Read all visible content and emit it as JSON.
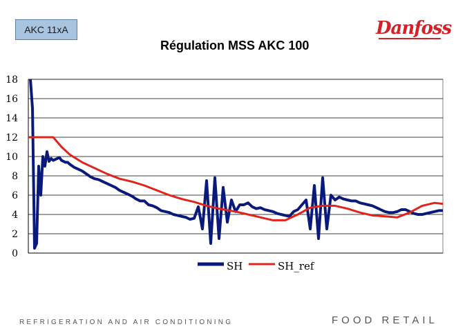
{
  "badge": {
    "label": "AKC 11xA"
  },
  "logo": {
    "text": "Danfoss",
    "color": "#d42027"
  },
  "chart_data": {
    "type": "line",
    "title": "Régulation MSS AKC 100",
    "xlabel": "",
    "ylabel": "",
    "ylim": [
      0,
      18
    ],
    "yticks": [
      0,
      2,
      4,
      6,
      8,
      10,
      12,
      14,
      16,
      18
    ],
    "ytick_labels": [
      "0",
      "2",
      "4",
      "6",
      "8",
      "10",
      "12",
      "14",
      "16",
      "18"
    ],
    "grid": true,
    "legend_position": "bottom-center",
    "xlim": [
      0,
      100
    ],
    "series": [
      {
        "name": "SH",
        "color": "#0a1a7a",
        "x": [
          0.5,
          1,
          1.5,
          2,
          2.5,
          3,
          3.5,
          4,
          4.5,
          5,
          5.5,
          6,
          6.5,
          7,
          7.5,
          8,
          8.5,
          9,
          9.5,
          10,
          11,
          12,
          13,
          14,
          15,
          16,
          17,
          18,
          19,
          20,
          21,
          22,
          23,
          24,
          25,
          26,
          27,
          28,
          29,
          30,
          31,
          32,
          33,
          34,
          35,
          36,
          37,
          38,
          39,
          40,
          41,
          42,
          43,
          44,
          45,
          46,
          47,
          48,
          49,
          50,
          51,
          52,
          53,
          54,
          55,
          56,
          57,
          58,
          59,
          60,
          61,
          62,
          63,
          64,
          65,
          66,
          67,
          68,
          69,
          70,
          71,
          72,
          73,
          74,
          75,
          76,
          77,
          78,
          79,
          80,
          81,
          82,
          83,
          84,
          85,
          86,
          87,
          88,
          89,
          90,
          91,
          92,
          93,
          94,
          95,
          96,
          97,
          98,
          99,
          100
        ],
        "values": [
          18,
          15,
          0.5,
          1,
          9,
          6,
          10,
          9,
          10.5,
          9.5,
          9.8,
          9.6,
          9.7,
          9.8,
          9.9,
          9.6,
          9.5,
          9.4,
          9.4,
          9.2,
          8.9,
          8.7,
          8.5,
          8.2,
          7.9,
          7.7,
          7.6,
          7.4,
          7.2,
          7.0,
          6.8,
          6.5,
          6.3,
          6.1,
          5.9,
          5.6,
          5.4,
          5.4,
          5.0,
          4.9,
          4.7,
          4.4,
          4.3,
          4.2,
          4.0,
          3.9,
          3.8,
          3.7,
          3.5,
          3.6,
          4.8,
          2.5,
          7.5,
          1.0,
          7.8,
          1.5,
          6.8,
          3.2,
          5.5,
          4.3,
          5.0,
          5.0,
          5.2,
          4.8,
          4.6,
          4.7,
          4.5,
          4.4,
          4.3,
          4.1,
          4.0,
          3.9,
          3.8,
          4.3,
          4.5,
          5.0,
          5.5,
          2.5,
          7.0,
          1.5,
          7.8,
          2.5,
          6.0,
          5.5,
          5.8,
          5.6,
          5.5,
          5.4,
          5.4,
          5.2,
          5.1,
          5.0,
          4.9,
          4.7,
          4.5,
          4.3,
          4.2,
          4.2,
          4.3,
          4.5,
          4.5,
          4.3,
          4.1,
          4.0,
          4.0,
          4.1,
          4.2,
          4.3,
          4.4,
          4.4
        ]
      },
      {
        "name": "SH_ref",
        "color": "#e2231a",
        "x": [
          0,
          2,
          4,
          6,
          8,
          10,
          13,
          16,
          19,
          22,
          25,
          28,
          31,
          34,
          37,
          40,
          43,
          46,
          50,
          53,
          56,
          59,
          62,
          65,
          68,
          71,
          74,
          77,
          80,
          83,
          86,
          89,
          92,
          95,
          98,
          100
        ],
        "values": [
          12,
          12,
          12,
          12,
          11.0,
          10.2,
          9.4,
          8.8,
          8.2,
          7.7,
          7.4,
          7.0,
          6.5,
          6.0,
          5.6,
          5.3,
          4.9,
          4.6,
          4.3,
          4.0,
          3.7,
          3.4,
          3.4,
          4.0,
          4.7,
          4.9,
          4.9,
          4.6,
          4.2,
          3.9,
          3.8,
          3.7,
          4.2,
          4.9,
          5.2,
          5.1
        ]
      }
    ]
  },
  "footer": {
    "left": "REFRIGERATION AND AIR CONDITIONING",
    "right": "FOOD RETAIL"
  }
}
